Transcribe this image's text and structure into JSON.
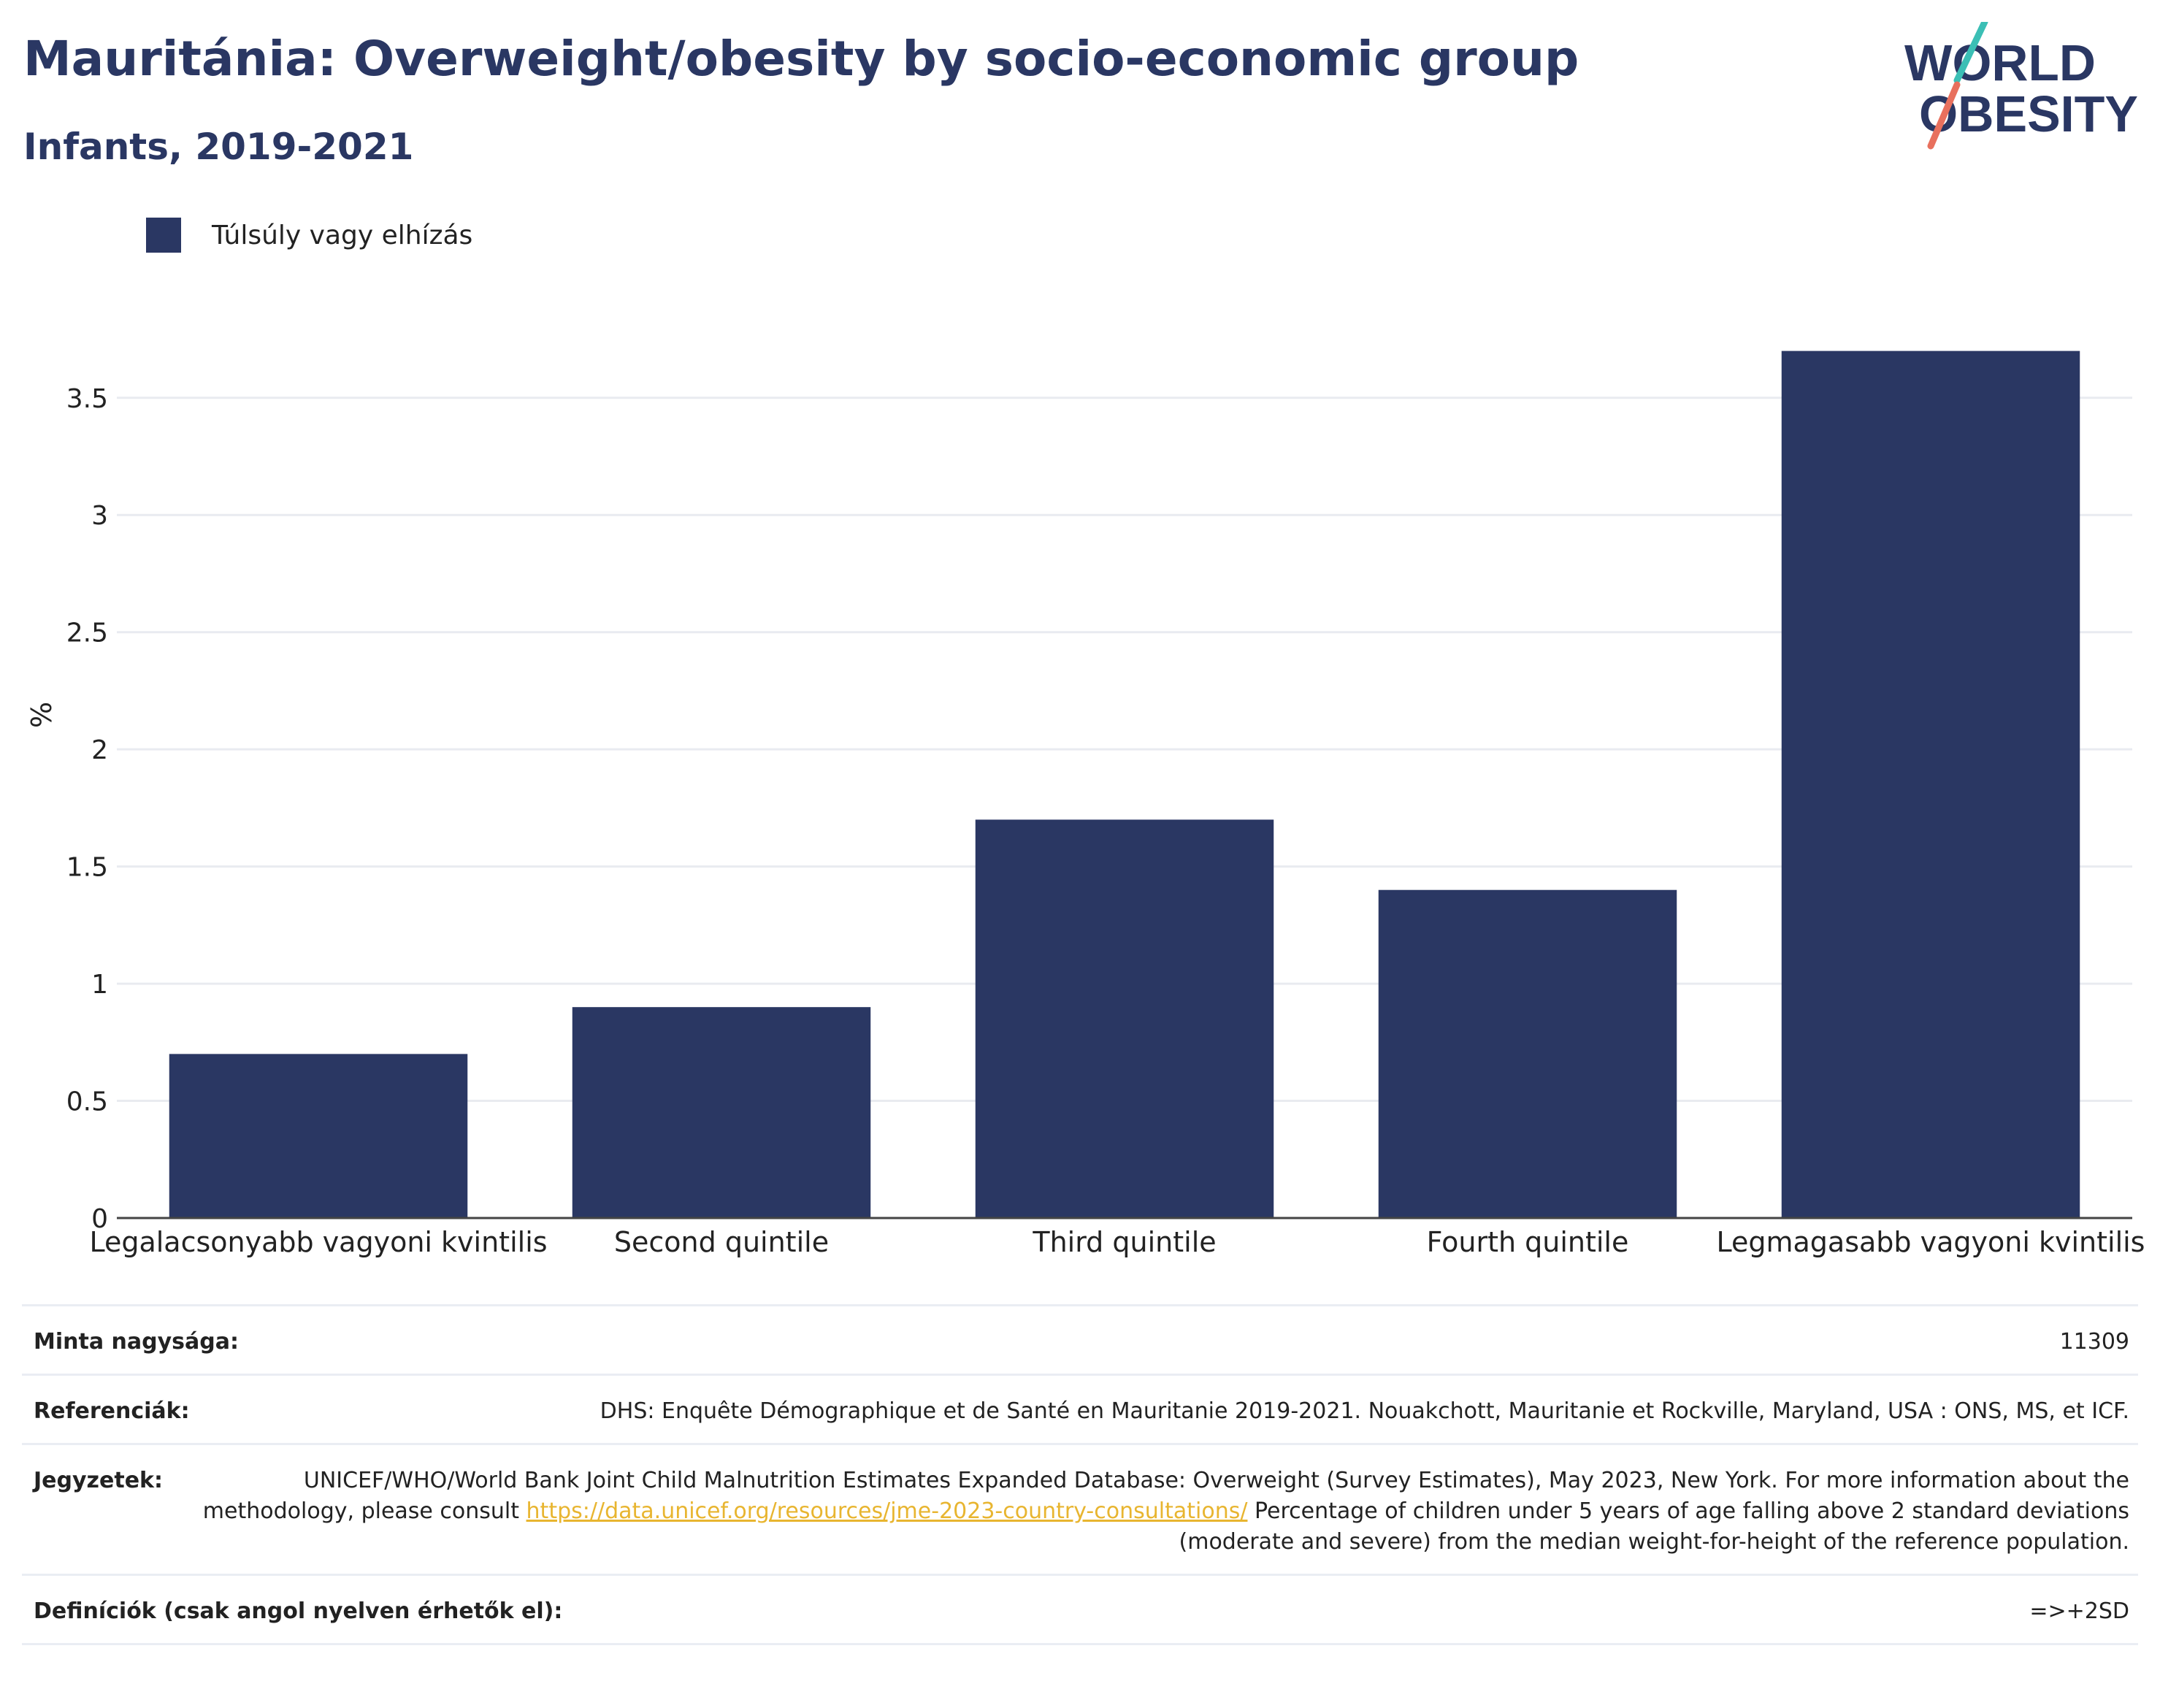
{
  "title": "Mauritánia: Overweight/obesity by socio-economic group",
  "subtitle": "Infants, 2019-2021",
  "logo": {
    "line1": "WORLD",
    "line2": "OBESITY",
    "colors": {
      "text": "#2a3763",
      "accent_top": "#3bbfb5",
      "accent_bottom": "#e8705d"
    }
  },
  "legend": {
    "label": "Túlsúly vagy elhízás",
    "color": "#2a3763"
  },
  "chart_data": {
    "type": "bar",
    "categories": [
      "Legalacsonyabb vagyoni kvintilis",
      "Second quintile",
      "Third quintile",
      "Fourth quintile",
      "Legmagasabb vagyoni kvintilis"
    ],
    "series": [
      {
        "name": "Túlsúly vagy elhízás",
        "values": [
          0.7,
          0.9,
          1.7,
          1.4,
          3.7
        ],
        "color": "#2a3763"
      }
    ],
    "ylabel": "%",
    "xlabel": "",
    "ylim": [
      0,
      3.92
    ],
    "yticks": [
      0,
      0.5,
      1,
      1.5,
      2,
      2.5,
      3,
      3.5
    ],
    "ytick_labels": [
      "0",
      "0.5",
      "1",
      "1.5",
      "2",
      "2.5",
      "3",
      "3.5"
    ],
    "grid": true,
    "legend_position": "top-left"
  },
  "info": {
    "sample_size": {
      "label": "Minta nagysága:",
      "value": "11309"
    },
    "references": {
      "label": "Referenciák:",
      "value": "DHS: Enquête Démographique et de Santé en Mauritanie 2019-2021. Nouakchott, Mauritanie et Rockville, Maryland, USA : ONS, MS, et ICF."
    },
    "notes": {
      "label": "Jegyzetek:",
      "text_before": "UNICEF/WHO/World Bank Joint Child Malnutrition Estimates Expanded Database: Overweight (Survey Estimates), May 2023, New York. For more information about the methodology, please consult ",
      "link": "https://data.unicef.org/resources/jme-2023-country-consultations/",
      "text_after": " Percentage of children under 5 years of age falling above 2 standard deviations (moderate and severe) from the median weight-for-height of the reference population."
    },
    "definitions": {
      "label": "Definíciók (csak angol nyelven érhetők el):",
      "value": "=>+2SD"
    }
  }
}
